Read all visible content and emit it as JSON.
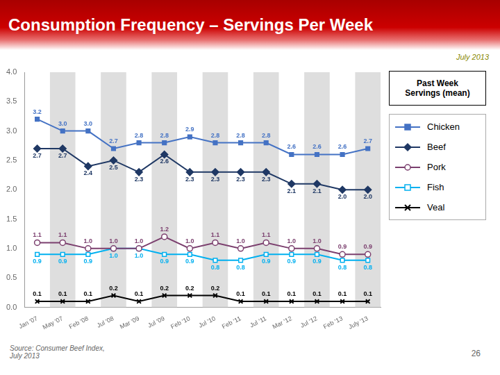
{
  "chart_data": {
    "type": "line",
    "title": "Consumption Frequency – Servings Per Week",
    "subtitle": "July 2013",
    "annotations": [
      "Past Week\nServings (mean)",
      "Source: Consumer Beef Index,\nJuly 2013",
      "26"
    ],
    "categories": [
      "Jan '07",
      "May '07",
      "Feb '08",
      "Jul '08",
      "Mar '09",
      "Jul '09",
      "Feb '10",
      "Jul '10",
      "Feb '11",
      "Jul '11",
      "Mar '12",
      "Jul '12",
      "Feb '13",
      "July '13"
    ],
    "series": [
      {
        "name": "Chicken",
        "color": "#4472C4",
        "marker": "square",
        "values": [
          3.2,
          3.0,
          3.0,
          2.7,
          2.8,
          2.8,
          2.9,
          2.8,
          2.8,
          2.8,
          2.6,
          2.6,
          2.6,
          2.7
        ],
        "value_labels": [
          "3.2",
          "3.0",
          "3.0",
          "2.7",
          "2.8",
          "2.8",
          "2.9",
          "2.8",
          "2.8",
          "2.8",
          "2.6",
          "2.6",
          "2.6",
          "2.7"
        ]
      },
      {
        "name": "Beef",
        "color": "#1F3864",
        "marker": "diamond",
        "values": [
          2.7,
          2.7,
          2.4,
          2.5,
          2.3,
          2.6,
          2.3,
          2.3,
          2.3,
          2.3,
          2.1,
          2.1,
          2.0,
          2.0
        ],
        "value_labels": [
          "2.7",
          "2.7",
          "2.4",
          "2.5",
          "2.3",
          "2.6",
          "2.3",
          "2.3",
          "2.3",
          "2.3",
          "2.1",
          "2.1",
          "2.0",
          "2.0"
        ]
      },
      {
        "name": "Pork",
        "color": "#7B3F6E",
        "marker": "open circle",
        "values": [
          1.1,
          1.1,
          1.0,
          1.0,
          1.0,
          1.2,
          1.0,
          1.1,
          1.0,
          1.1,
          1.0,
          1.0,
          0.9,
          0.9
        ],
        "value_labels": [
          "1.1",
          "1.1",
          "1.0",
          "1.0",
          "1.0",
          "1.2",
          "1.0",
          "1.1",
          "1.0",
          "1.1",
          "1.0",
          "1.0",
          "0.9",
          "0.9"
        ]
      },
      {
        "name": "Fish",
        "color": "#00B0F0",
        "marker": "open square",
        "values": [
          0.9,
          0.9,
          0.9,
          1.0,
          1.0,
          0.9,
          0.9,
          0.8,
          0.8,
          0.9,
          0.9,
          0.9,
          0.8,
          0.8
        ],
        "value_labels": [
          "0.9",
          "0.9",
          "0.9",
          "1.0",
          "1.0",
          "0.9",
          "0.9",
          "0.8",
          "0.8",
          "0.9",
          "0.9",
          "0.9",
          "0.8",
          "0.8"
        ]
      },
      {
        "name": "Veal",
        "color": "#000000",
        "marker": "x",
        "values": [
          0.1,
          0.1,
          0.1,
          0.2,
          0.1,
          0.2,
          0.2,
          0.2,
          0.1,
          0.1,
          0.1,
          0.1,
          0.1,
          0.1
        ],
        "value_labels": [
          "0.1",
          "0.1",
          "0.1",
          "0.2",
          "0.1",
          "0.2",
          "0.2",
          "0.2",
          "0.1",
          "0.1",
          "0.1",
          "0.1",
          "0.1",
          "0.1"
        ]
      }
    ],
    "ylim": [
      0,
      4
    ],
    "yticks": [
      {
        "value": 0,
        "label": "0.0"
      },
      0.5,
      {
        "value": 1,
        "label": "1.0"
      },
      1.5,
      {
        "value": 2,
        "label": "2.0"
      },
      2.5,
      {
        "value": 3,
        "label": "3.0"
      },
      3.5,
      {
        "value": 4,
        "label": "4.0"
      }
    ],
    "grid": false,
    "legend": "right",
    "data_labels": true
  }
}
